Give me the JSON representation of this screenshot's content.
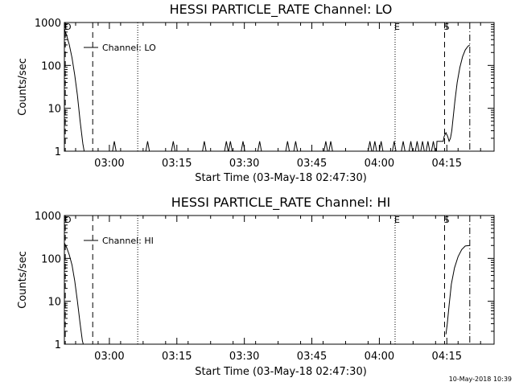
{
  "timestamp": "10-May-2018 10:39",
  "chart_data": [
    {
      "type": "line",
      "title": "HESSI PARTICLE_RATE Channel: LO",
      "xlabel": "Start Time (03-May-18 02:47:30)",
      "ylabel": "Counts/sec",
      "y_scale": "log",
      "ylim": [
        1,
        1000
      ],
      "y_ticks": [
        "1",
        "10",
        "100",
        "1000"
      ],
      "xlim_minutes": [
        2.5,
        98
      ],
      "x_ticks": [
        {
          "m": 12.5,
          "label": "03:00"
        },
        {
          "m": 27.5,
          "label": "03:15"
        },
        {
          "m": 42.5,
          "label": "03:30"
        },
        {
          "m": 57.5,
          "label": "03:45"
        },
        {
          "m": 72.5,
          "label": "04:00"
        },
        {
          "m": 87.5,
          "label": "04:15"
        }
      ],
      "legend": "Channel: LO",
      "markers": [
        {
          "m": 2.7,
          "style": "dashed",
          "label": "D"
        },
        {
          "m": 8.8,
          "style": "dashed",
          "label": ""
        },
        {
          "m": 18.8,
          "style": "dotted",
          "label": ""
        },
        {
          "m": 76.0,
          "style": "dotted",
          "label": "E"
        },
        {
          "m": 87.0,
          "style": "dashed",
          "label": "S"
        },
        {
          "m": 92.6,
          "style": "dashdot",
          "label": ""
        }
      ],
      "series": [
        {
          "points": [
            [
              2.5,
              700
            ],
            [
              3.0,
              500
            ],
            [
              3.6,
              300
            ],
            [
              4.2,
              150
            ],
            [
              4.8,
              60
            ],
            [
              5.4,
              20
            ],
            [
              6.0,
              5
            ],
            [
              6.6,
              1.5
            ],
            [
              6.9,
              1
            ],
            [
              7,
              1
            ],
            [
              13.2,
              1
            ],
            [
              13.6,
              1.7
            ],
            [
              14,
              1
            ],
            [
              20.6,
              1
            ],
            [
              21,
              1.7
            ],
            [
              21.4,
              1
            ],
            [
              26.3,
              1
            ],
            [
              26.7,
              1.7
            ],
            [
              27.1,
              1
            ],
            [
              33.2,
              1
            ],
            [
              33.6,
              1.7
            ],
            [
              34,
              1
            ],
            [
              38.1,
              1
            ],
            [
              38.5,
              1.7
            ],
            [
              38.9,
              1
            ],
            [
              39.0,
              1
            ],
            [
              39.4,
              1.7
            ],
            [
              39.8,
              1
            ],
            [
              41.8,
              1
            ],
            [
              42.2,
              1.7
            ],
            [
              42.6,
              1
            ],
            [
              45.5,
              1
            ],
            [
              45.9,
              1.7
            ],
            [
              46.3,
              1
            ],
            [
              51.7,
              1
            ],
            [
              52.1,
              1.7
            ],
            [
              52.5,
              1
            ],
            [
              53.5,
              1
            ],
            [
              53.9,
              1.7
            ],
            [
              54.3,
              1
            ],
            [
              60.2,
              1
            ],
            [
              60.6,
              1.7
            ],
            [
              61.0,
              1
            ],
            [
              61.3,
              1
            ],
            [
              61.7,
              1.7
            ],
            [
              62.1,
              1
            ],
            [
              70.0,
              1
            ],
            [
              70.4,
              1.7
            ],
            [
              70.8,
              1
            ],
            [
              71.1,
              1
            ],
            [
              71.5,
              1.7
            ],
            [
              71.9,
              1
            ],
            [
              72.5,
              1
            ],
            [
              72.9,
              1.7
            ],
            [
              73.3,
              1
            ],
            [
              75.4,
              1
            ],
            [
              75.8,
              1.7
            ],
            [
              76.2,
              1
            ],
            [
              77.4,
              1
            ],
            [
              77.8,
              1.7
            ],
            [
              78.2,
              1
            ],
            [
              79.1,
              1
            ],
            [
              79.5,
              1.7
            ],
            [
              79.9,
              1
            ],
            [
              80.5,
              1
            ],
            [
              80.9,
              1.7
            ],
            [
              81.3,
              1
            ],
            [
              81.7,
              1
            ],
            [
              82.1,
              1.7
            ],
            [
              82.5,
              1
            ],
            [
              82.9,
              1
            ],
            [
              83.3,
              1.7
            ],
            [
              83.7,
              1
            ],
            [
              84.1,
              1
            ],
            [
              84.5,
              1.7
            ],
            [
              84.9,
              1
            ],
            [
              85.2,
              1
            ],
            [
              85.3,
              1.7
            ],
            [
              86.7,
              1.7
            ],
            [
              86.9,
              2.2
            ],
            [
              87.3,
              2.7
            ],
            [
              87.7,
              2.2
            ],
            [
              88.0,
              1.7
            ],
            [
              88.3,
              2.0
            ],
            [
              88.6,
              3
            ],
            [
              88.9,
              6
            ],
            [
              89.3,
              15
            ],
            [
              89.8,
              40
            ],
            [
              90.4,
              90
            ],
            [
              91.0,
              160
            ],
            [
              91.6,
              230
            ],
            [
              92.2,
              280
            ],
            [
              92.6,
              300
            ]
          ]
        }
      ]
    },
    {
      "type": "line",
      "title": "HESSI PARTICLE_RATE Channel: HI",
      "xlabel": "Start Time (03-May-18 02:47:30)",
      "ylabel": "Counts/sec",
      "y_scale": "log",
      "ylim": [
        1,
        1000
      ],
      "y_ticks": [
        "1",
        "10",
        "100",
        "1000"
      ],
      "xlim_minutes": [
        2.5,
        98
      ],
      "x_ticks": [
        {
          "m": 12.5,
          "label": "03:00"
        },
        {
          "m": 27.5,
          "label": "03:15"
        },
        {
          "m": 42.5,
          "label": "03:30"
        },
        {
          "m": 57.5,
          "label": "03:45"
        },
        {
          "m": 72.5,
          "label": "04:00"
        },
        {
          "m": 87.5,
          "label": "04:15"
        }
      ],
      "legend": "Channel: HI",
      "markers": [
        {
          "m": 2.7,
          "style": "dashed",
          "label": "D"
        },
        {
          "m": 8.8,
          "style": "dashed",
          "label": ""
        },
        {
          "m": 18.8,
          "style": "dotted",
          "label": ""
        },
        {
          "m": 76.0,
          "style": "dotted",
          "label": "E"
        },
        {
          "m": 87.0,
          "style": "dashed",
          "label": "S"
        },
        {
          "m": 92.6,
          "style": "dashdot",
          "label": ""
        }
      ],
      "series": [
        {
          "points": [
            [
              2.5,
              230
            ],
            [
              3.0,
              180
            ],
            [
              3.6,
              120
            ],
            [
              4.2,
              70
            ],
            [
              4.8,
              30
            ],
            [
              5.4,
              10
            ],
            [
              6.0,
              3
            ],
            [
              6.5,
              1.2
            ],
            [
              6.7,
              1
            ]
          ]
        },
        {
          "points": [
            [
              87.3,
              1.7
            ],
            [
              87.6,
              3
            ],
            [
              88.0,
              8
            ],
            [
              88.5,
              25
            ],
            [
              89.2,
              60
            ],
            [
              90.0,
              110
            ],
            [
              90.8,
              160
            ],
            [
              91.6,
              195
            ],
            [
              92.6,
              200
            ]
          ]
        }
      ]
    }
  ]
}
